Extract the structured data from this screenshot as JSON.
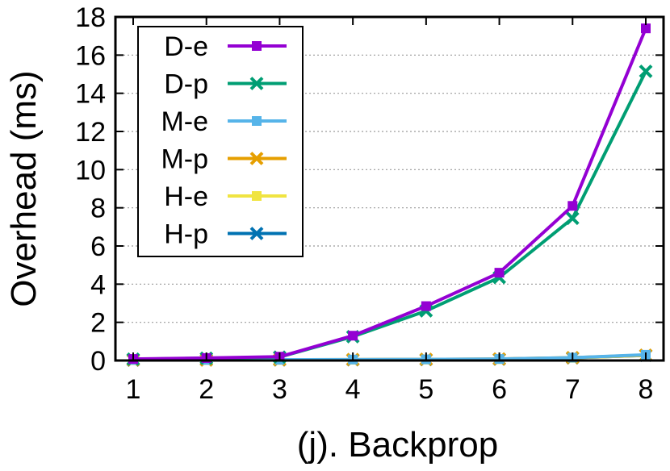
{
  "chart_data": {
    "type": "line",
    "title": "",
    "xlabel": "(j). Backprop",
    "ylabel": "Overhead (ms)",
    "x": [
      1,
      2,
      3,
      4,
      5,
      6,
      7,
      8
    ],
    "xticks": [
      "1",
      "2",
      "3",
      "4",
      "5",
      "6",
      "7",
      "8"
    ],
    "yticks": [
      "0",
      "2",
      "4",
      "6",
      "8",
      "10",
      "12",
      "14",
      "16",
      "18"
    ],
    "xlim": [
      1,
      8
    ],
    "ylim": [
      0,
      18
    ],
    "grid": "horizontal dotted",
    "legend_position": "top-left",
    "series": [
      {
        "name": "D-e",
        "color": "#9400d3",
        "marker": "square",
        "values": [
          0.08,
          0.13,
          0.2,
          1.3,
          2.85,
          4.6,
          8.1,
          17.4
        ]
      },
      {
        "name": "D-p",
        "color": "#009e73",
        "marker": "x",
        "values": [
          0.07,
          0.12,
          0.18,
          1.25,
          2.6,
          4.35,
          7.45,
          15.15
        ]
      },
      {
        "name": "M-e",
        "color": "#56b4e9",
        "marker": "square",
        "values": [
          0.03,
          0.03,
          0.04,
          0.05,
          0.06,
          0.08,
          0.15,
          0.3
        ]
      },
      {
        "name": "M-p",
        "color": "#e69f00",
        "marker": "x",
        "values": [
          0.03,
          0.03,
          0.04,
          0.05,
          0.06,
          0.08,
          0.15,
          0.28
        ]
      },
      {
        "name": "H-e",
        "color": "#f0e442",
        "marker": "square",
        "values": [
          0.02,
          0.03,
          0.03,
          0.04,
          0.05,
          0.07,
          0.14,
          0.27
        ]
      },
      {
        "name": "H-p",
        "color": "#0072b2",
        "marker": "x",
        "values": [
          0.02,
          0.03,
          0.03,
          0.04,
          0.05,
          0.07,
          0.14,
          0.27
        ]
      }
    ]
  }
}
